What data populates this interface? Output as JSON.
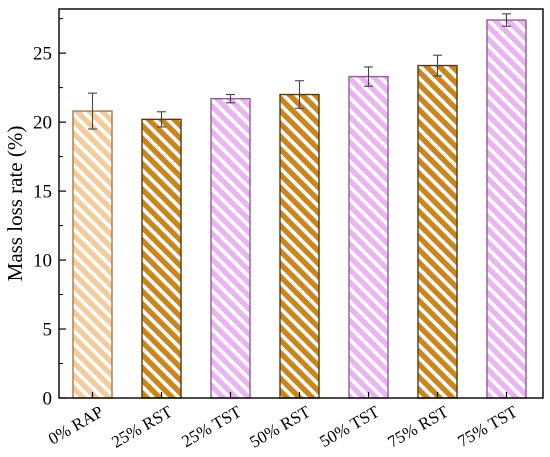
{
  "chart_data": {
    "type": "bar",
    "title": "",
    "xlabel": "",
    "ylabel": "Mass loss rate (%)",
    "ylim": [
      0,
      28.2
    ],
    "yticks": [
      "0",
      "5",
      "10",
      "15",
      "20",
      "25"
    ],
    "categories": [
      "0% RAP",
      "25% RST",
      "25% TST",
      "50% RST",
      "50% TST",
      "75% RST",
      "75% TST"
    ],
    "values": [
      20.8,
      20.2,
      21.7,
      22.0,
      23.3,
      24.1,
      27.4
    ],
    "errors": [
      1.3,
      0.55,
      0.3,
      1.0,
      0.7,
      0.75,
      0.45
    ],
    "fill_groups": [
      "light-orange",
      "orange",
      "pink",
      "orange",
      "pink",
      "orange",
      "pink"
    ],
    "colors": {
      "light-orange": {
        "fill": "#f3cc9b",
        "edge": "#a97a45"
      },
      "orange": {
        "fill": "#c9861f",
        "edge": "#5a3608"
      },
      "pink": {
        "fill": "#eab3f1",
        "edge": "#8e5b97"
      }
    },
    "pattern": "diagonal-hatch",
    "grid": false,
    "legend": "none"
  }
}
